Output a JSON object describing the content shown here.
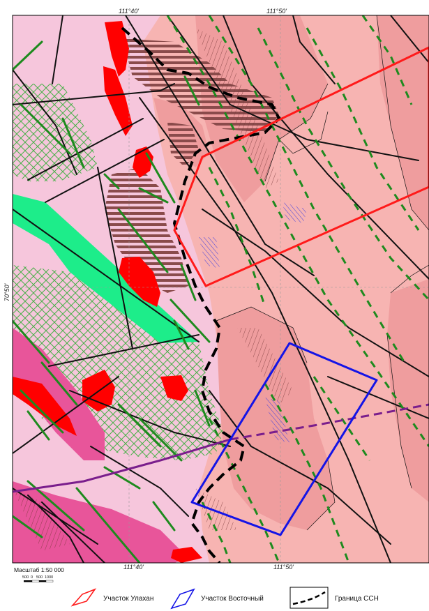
{
  "coordinates": {
    "top_left_lon": "111°40'",
    "top_right_lon": "111°50'",
    "bottom_left_lon": "111°40'",
    "bottom_right_lon": "111°50'",
    "left_lat": "70°50'"
  },
  "scale": {
    "label": "Масштаб 1:50 000",
    "ticks": [
      "500",
      "0",
      "500",
      "1000"
    ]
  },
  "legend": [
    {
      "label": "Участок Улахан",
      "color": "#ff1a1a",
      "icon": "red-outline-polygon-icon"
    },
    {
      "label": "Участок Восточный",
      "color": "#1414e6",
      "icon": "blue-outline-polygon-icon"
    },
    {
      "label": "Граница ССН",
      "color": "#000000",
      "icon": "dashed-boundary-icon"
    }
  ],
  "colors": {
    "pale_pink": "#f6c6dc",
    "salmon": "#f7b4b2",
    "dark_salmon": "#ef9d9e",
    "magenta": "#e8559a",
    "mint": "#1ded8a",
    "red": "#ff0000",
    "fault_green": "#1e8a1e",
    "purple_line": "#7a1e8c"
  }
}
